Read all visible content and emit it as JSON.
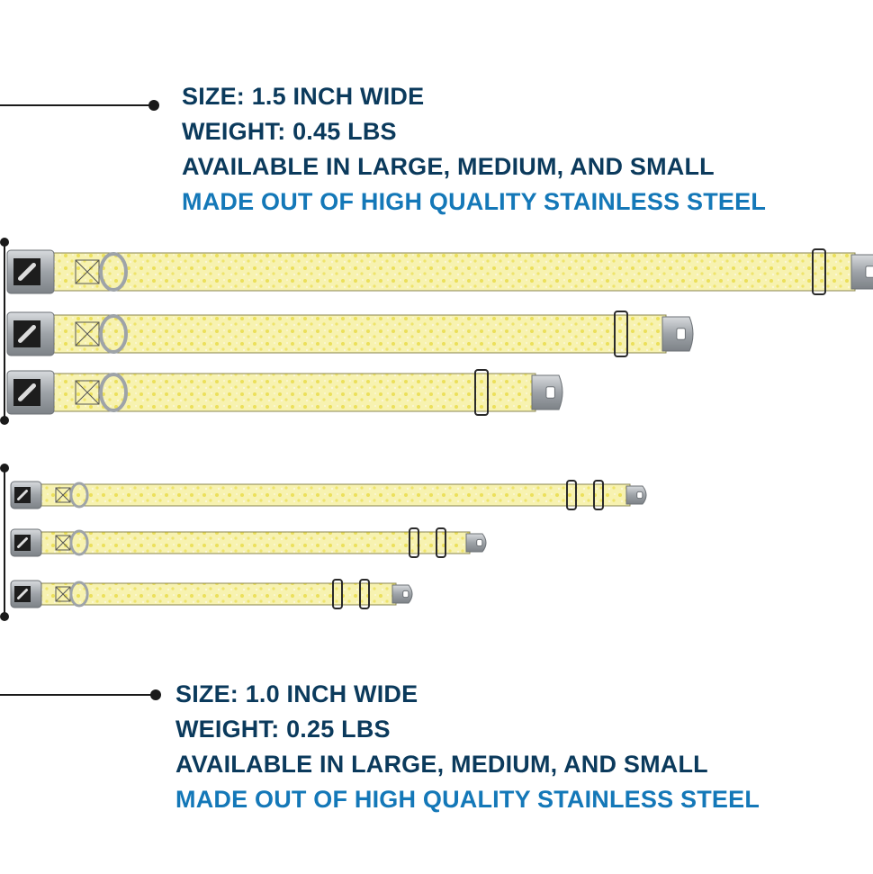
{
  "sections": [
    {
      "lines": [
        "SIZE: 1.5 INCH WIDE",
        "WEIGHT: 0.45 LBS",
        "AVAILABLE IN LARGE, MEDIUM, AND SMALL"
      ],
      "accent_line": "MADE OUT OF HIGH QUALITY STAINLESS STEEL"
    },
    {
      "lines": [
        "SIZE: 1.0 INCH WIDE",
        "WEIGHT: 0.25 LBS",
        "AVAILABLE IN LARGE, MEDIUM, AND SMALL"
      ],
      "accent_line": "MADE OUT OF HIGH QUALITY STAINLESS STEEL"
    }
  ],
  "colors": {
    "heading_text": "#0b3a5c",
    "accent_text": "#1478b8",
    "collar_fabric": "#f7f2b0",
    "collar_pattern": "#ece05a",
    "buckle_metal": "#a9aeb3",
    "slider": "#2a2a2a"
  },
  "icons": [
    "seatbelt-buckle-icon",
    "bone-logo-icon",
    "d-ring-icon",
    "tri-glide-slider-icon",
    "collar-tip-icon"
  ]
}
